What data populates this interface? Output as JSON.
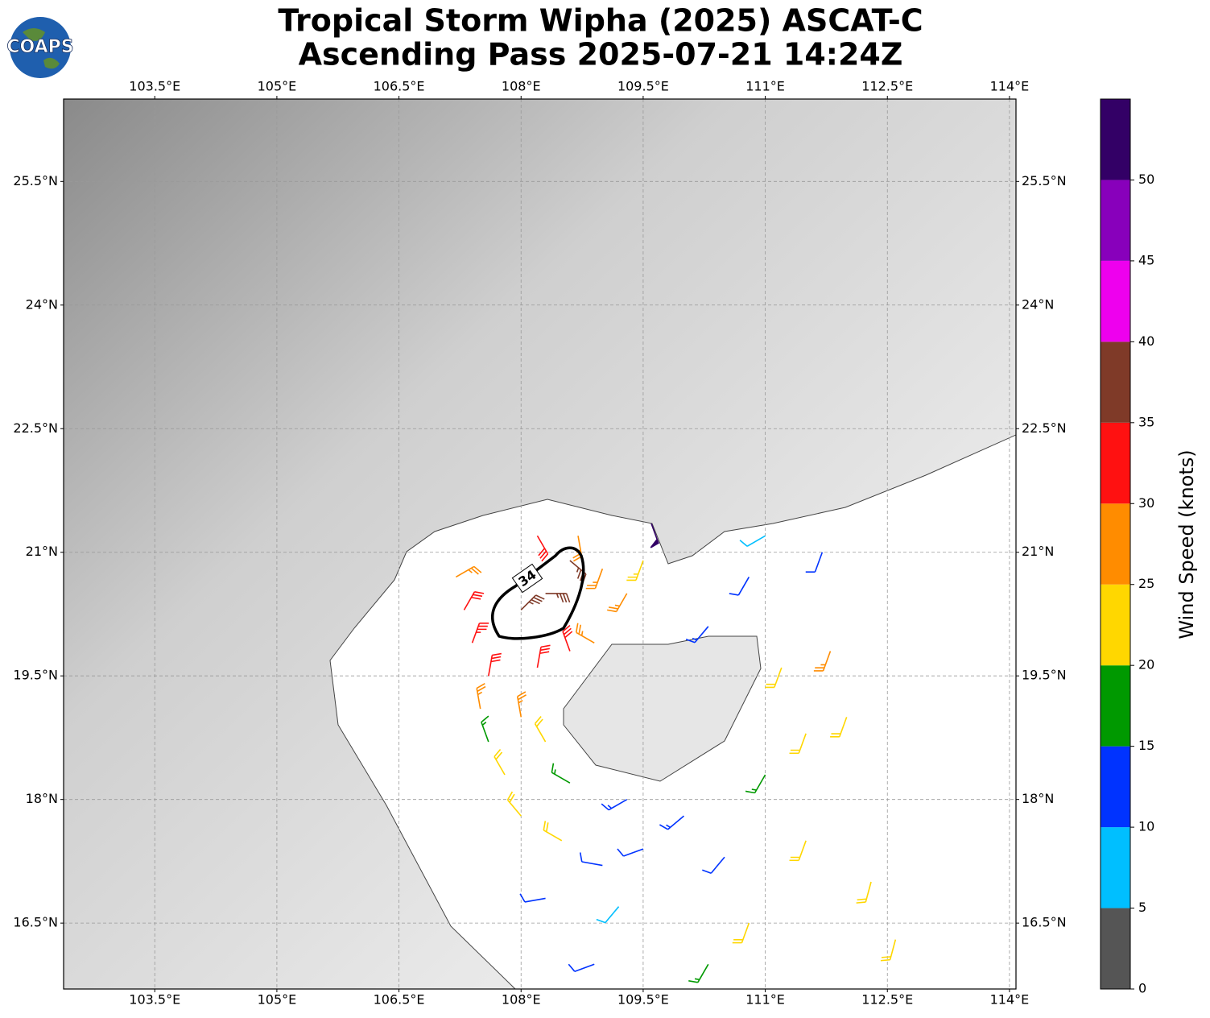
{
  "chart_data": {
    "type": "barbs",
    "title": "Tropical Storm Wipha (2025) ASCAT-C",
    "subtitle": "Ascending Pass 2025-07-21 14:24Z",
    "logo": "COAPS",
    "xlim": [
      102.38,
      114.08
    ],
    "ylim": [
      15.7,
      26.5
    ],
    "xticks": [
      {
        "value": 103.5,
        "label": "103.5°E"
      },
      {
        "value": 105,
        "label": "105°E"
      },
      {
        "value": 106.5,
        "label": "106.5°E"
      },
      {
        "value": 108,
        "label": "108°E"
      },
      {
        "value": 109.5,
        "label": "109.5°E"
      },
      {
        "value": 111,
        "label": "111°E"
      },
      {
        "value": 112.5,
        "label": "112.5°E"
      },
      {
        "value": 114,
        "label": "114°E"
      }
    ],
    "yticks": [
      {
        "value": 16.5,
        "label": "16.5°N"
      },
      {
        "value": 18,
        "label": "18°N"
      },
      {
        "value": 19.5,
        "label": "19.5°N"
      },
      {
        "value": 21,
        "label": "21°N"
      },
      {
        "value": 22.5,
        "label": "22.5°N"
      },
      {
        "value": 24,
        "label": "24°N"
      },
      {
        "value": 25.5,
        "label": "25.5°N"
      }
    ],
    "grid": true,
    "contour_level": 34,
    "colorbar": {
      "label": "Wind Speed (knots)",
      "lim": [
        0,
        55
      ],
      "ticks": [
        0,
        5,
        10,
        15,
        20,
        25,
        30,
        35,
        40,
        45,
        50
      ],
      "colors": [
        "#555555",
        "#00bfff",
        "#0033ff",
        "#009900",
        "#ffd700",
        "#ff8c00",
        "#ff1111",
        "#7f3a28",
        "#ee00ee",
        "#8800bb",
        "#330066"
      ]
    },
    "barbs": [
      {
        "lon": 107.2,
        "lat": 20.7,
        "speed": 27,
        "dir": 60
      },
      {
        "lon": 107.3,
        "lat": 20.3,
        "speed": 32,
        "dir": 30
      },
      {
        "lon": 107.4,
        "lat": 19.9,
        "speed": 33,
        "dir": 20
      },
      {
        "lon": 107.6,
        "lat": 19.5,
        "speed": 32,
        "dir": 10
      },
      {
        "lon": 107.5,
        "lat": 19.1,
        "speed": 27,
        "dir": 350
      },
      {
        "lon": 107.6,
        "lat": 18.7,
        "speed": 17,
        "dir": 340
      },
      {
        "lon": 107.8,
        "lat": 18.3,
        "speed": 22,
        "dir": 330
      },
      {
        "lon": 108.0,
        "lat": 20.3,
        "speed": 37,
        "dir": 45
      },
      {
        "lon": 108.3,
        "lat": 20.5,
        "speed": 37,
        "dir": 90
      },
      {
        "lon": 108.6,
        "lat": 20.9,
        "speed": 37,
        "dir": 130
      },
      {
        "lon": 108.2,
        "lat": 21.2,
        "speed": 32,
        "dir": 150
      },
      {
        "lon": 108.7,
        "lat": 21.2,
        "speed": 27,
        "dir": 170
      },
      {
        "lon": 109.0,
        "lat": 20.8,
        "speed": 27,
        "dir": 200
      },
      {
        "lon": 109.3,
        "lat": 20.5,
        "speed": 26,
        "dir": 210
      },
      {
        "lon": 109.5,
        "lat": 20.9,
        "speed": 23,
        "dir": 200
      },
      {
        "lon": 108.2,
        "lat": 19.6,
        "speed": 32,
        "dir": 10
      },
      {
        "lon": 108.6,
        "lat": 19.8,
        "speed": 32,
        "dir": 340
      },
      {
        "lon": 108.9,
        "lat": 19.9,
        "speed": 27,
        "dir": 300
      },
      {
        "lon": 108.0,
        "lat": 19.0,
        "speed": 27,
        "dir": 350
      },
      {
        "lon": 108.3,
        "lat": 18.7,
        "speed": 22,
        "dir": 330
      },
      {
        "lon": 108.0,
        "lat": 17.8,
        "speed": 22,
        "dir": 320
      },
      {
        "lon": 108.5,
        "lat": 17.5,
        "speed": 22,
        "dir": 300
      },
      {
        "lon": 109.0,
        "lat": 17.2,
        "speed": 12,
        "dir": 280
      },
      {
        "lon": 109.5,
        "lat": 17.4,
        "speed": 12,
        "dir": 250
      },
      {
        "lon": 109.2,
        "lat": 16.7,
        "speed": 8,
        "dir": 220
      },
      {
        "lon": 108.3,
        "lat": 16.8,
        "speed": 12,
        "dir": 260
      },
      {
        "lon": 110.0,
        "lat": 17.8,
        "speed": 13,
        "dir": 230
      },
      {
        "lon": 110.5,
        "lat": 17.3,
        "speed": 12,
        "dir": 220
      },
      {
        "lon": 111.0,
        "lat": 18.3,
        "speed": 17,
        "dir": 210
      },
      {
        "lon": 111.5,
        "lat": 18.8,
        "speed": 22,
        "dir": 200
      },
      {
        "lon": 111.2,
        "lat": 19.6,
        "speed": 22,
        "dir": 200
      },
      {
        "lon": 111.8,
        "lat": 19.8,
        "speed": 27,
        "dir": 200
      },
      {
        "lon": 112.0,
        "lat": 19.0,
        "speed": 22,
        "dir": 200
      },
      {
        "lon": 111.5,
        "lat": 17.5,
        "speed": 22,
        "dir": 200
      },
      {
        "lon": 112.3,
        "lat": 17.0,
        "speed": 22,
        "dir": 195
      },
      {
        "lon": 112.6,
        "lat": 16.3,
        "speed": 22,
        "dir": 195
      },
      {
        "lon": 110.8,
        "lat": 16.5,
        "speed": 22,
        "dir": 200
      },
      {
        "lon": 110.3,
        "lat": 16.0,
        "speed": 17,
        "dir": 210
      },
      {
        "lon": 108.9,
        "lat": 16.0,
        "speed": 12,
        "dir": 250
      },
      {
        "lon": 110.8,
        "lat": 20.7,
        "speed": 12,
        "dir": 210
      },
      {
        "lon": 111.0,
        "lat": 21.2,
        "speed": 8,
        "dir": 240
      },
      {
        "lon": 111.7,
        "lat": 21.0,
        "speed": 12,
        "dir": 200
      },
      {
        "lon": 109.6,
        "lat": 21.35,
        "speed": 52,
        "dir": 160
      },
      {
        "lon": 110.3,
        "lat": 20.1,
        "speed": 13,
        "dir": 220
      },
      {
        "lon": 108.6,
        "lat": 18.2,
        "speed": 17,
        "dir": 300
      },
      {
        "lon": 109.3,
        "lat": 18.0,
        "speed": 13,
        "dir": 240
      }
    ]
  }
}
